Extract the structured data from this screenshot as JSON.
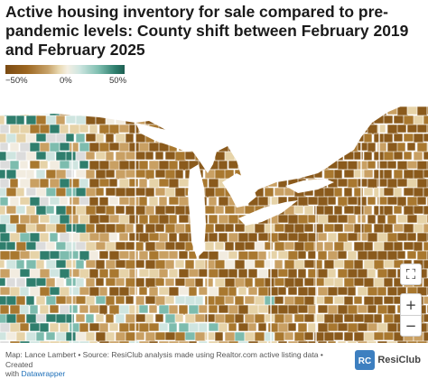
{
  "title": "Active housing inventory for sale compared to pre-pandemic levels: County shift between February 2019 and February 2025",
  "legend": {
    "labels": [
      "−50%",
      "0%",
      "50%"
    ],
    "colors": [
      "#7a4a12",
      "#c8a36a",
      "#f4efe2",
      "#7fbfb1",
      "#1e5f52"
    ]
  },
  "map": {
    "region": "Midwest and Northeast United States counties",
    "water_color": "#ffffff",
    "palette": {
      "dark_brown": "#8a5a1c",
      "mid_brown": "#a9782f",
      "tan": "#c9a063",
      "light_tan": "#e6d3a8",
      "cream": "#f2ece0",
      "light_teal": "#cfe5e0",
      "mid_teal": "#7dbcae",
      "dark_teal": "#2f7e6d",
      "no_data": "#dcdcdc"
    }
  },
  "controls": {
    "fullscreen": "⛶",
    "zoom_in": "+",
    "zoom_out": "−"
  },
  "footer": {
    "line1": "Map: Lance Lambert • Source: ResiClub analysis made using Realtor.com active listing data • Created",
    "line2_prefix": "with ",
    "line2_link": "Datawrapper"
  },
  "logo": {
    "mark": "RC",
    "text": "ResiClub"
  }
}
